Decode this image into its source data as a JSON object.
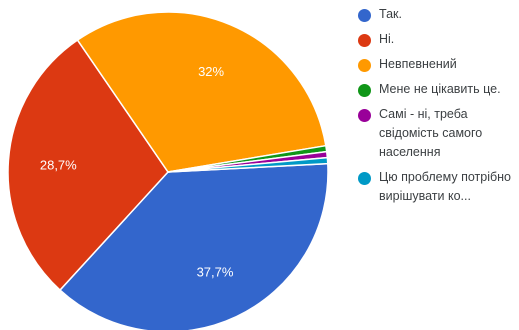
{
  "chart_data": {
    "type": "pie",
    "start_angle_deg": -3,
    "slices": [
      {
        "label": "Так.",
        "value": 37.7,
        "display": "37,7%",
        "color": "#3366cc"
      },
      {
        "label": "Ні.",
        "value": 28.7,
        "display": "28,7%",
        "color": "#dc3912"
      },
      {
        "label": "Невпевнений",
        "value": 32,
        "display": "32%",
        "color": "#ff9900"
      },
      {
        "label": "Мене не цікавить це.",
        "value": 0.6,
        "display": "",
        "color": "#109618"
      },
      {
        "label": "Самі - ні, треба свідомість самого населення",
        "value": 0.6,
        "display": "",
        "color": "#990099"
      },
      {
        "label": "Цю проблему потрібно вирішувати ко...",
        "value": 0.6,
        "display": "",
        "color": "#0099c6"
      }
    ],
    "legend_position": "right"
  }
}
